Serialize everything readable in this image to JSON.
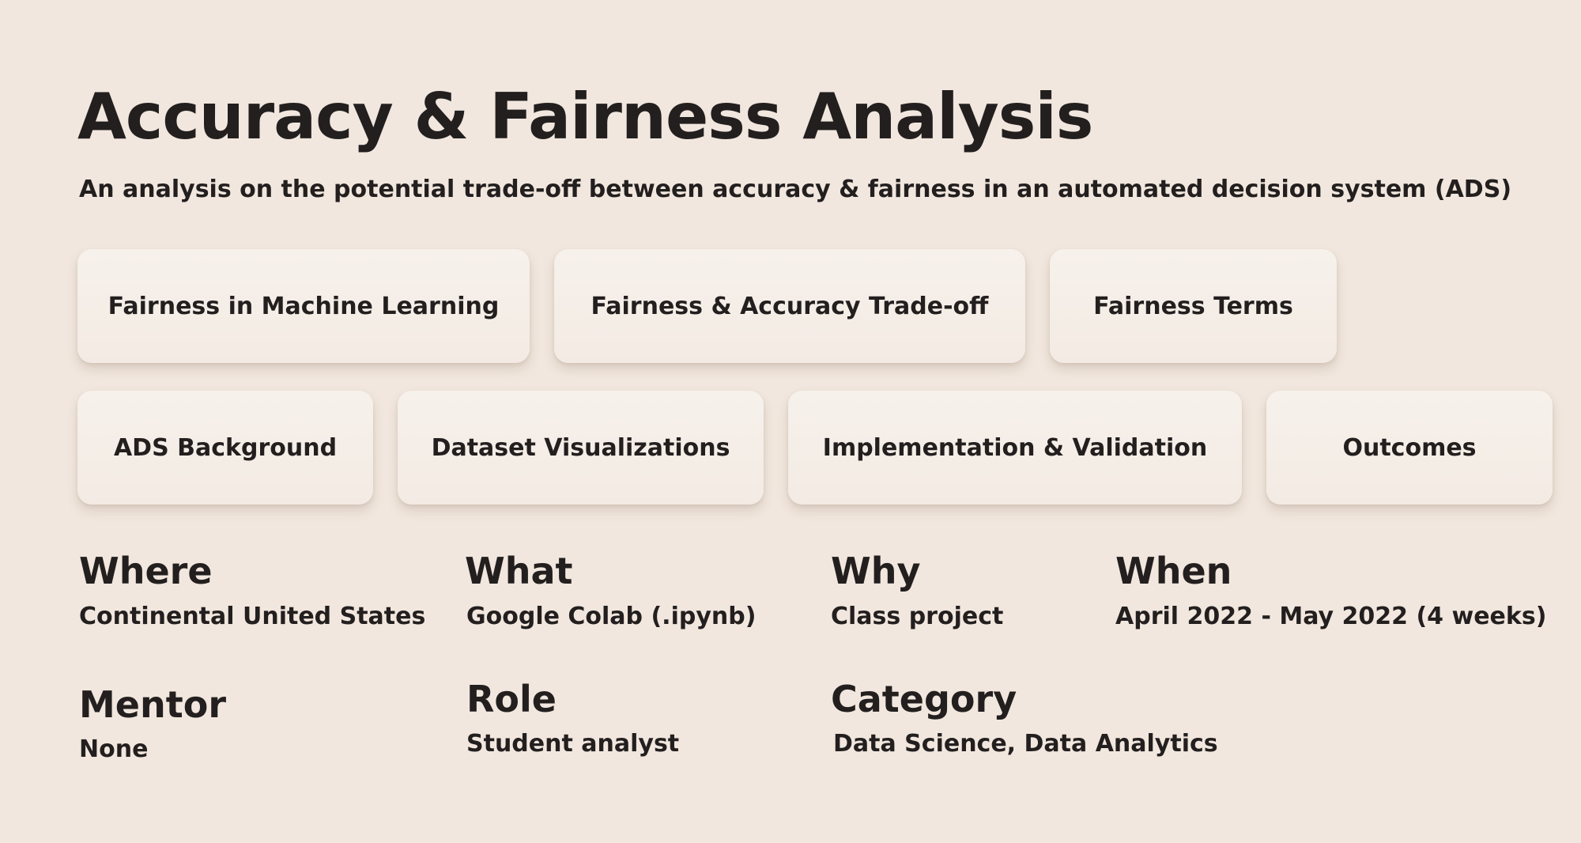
{
  "header": {
    "title": "Accuracy & Fairness Analysis",
    "subtitle": "An analysis on the potential trade-off between accuracy & fairness in an automated decision system (ADS)"
  },
  "nav": {
    "row1": [
      {
        "label": "Fairness in Machine Learning"
      },
      {
        "label": "Fairness & Accuracy Trade-off"
      },
      {
        "label": "Fairness Terms"
      }
    ],
    "row2": [
      {
        "label": "ADS Background"
      },
      {
        "label": "Dataset Visualizations"
      },
      {
        "label": "Implementation & Validation"
      },
      {
        "label": "Outcomes"
      }
    ]
  },
  "details": {
    "where": {
      "heading": "Where",
      "value": "Continental United States"
    },
    "what": {
      "heading": "What",
      "value": "Google Colab (.ipynb)"
    },
    "why": {
      "heading": "Why",
      "value": "Class project"
    },
    "when": {
      "heading": "When",
      "value": "April 2022 - May 2022 (4 weeks)"
    },
    "mentor": {
      "heading": "Mentor",
      "value": "None"
    },
    "role": {
      "heading": "Role",
      "value": "Student analyst"
    },
    "category": {
      "heading": "Category",
      "value": "Data Science, Data Analytics"
    }
  },
  "colors": {
    "background": "#f1e7de",
    "card": "#f6efe9",
    "text": "#231f1f"
  }
}
